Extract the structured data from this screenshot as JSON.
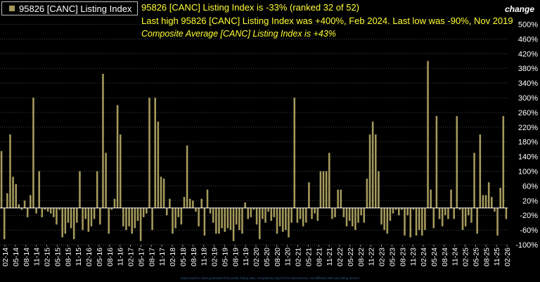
{
  "legend": {
    "label": "95826 [CANC] Listing Index",
    "color": "#a59a5c"
  },
  "headlines": {
    "line1": "95826 [CANC] Listing Index is -33% (ranked 32 of 52)",
    "line2": "Last high 95826 [CANC] Listing Index was +400%, Feb 2024. Last low was -90%, Nov 2019",
    "line3": "Composite Average [CANC] Listing Index is +43%"
  },
  "axis_title": "change",
  "colors": {
    "background": "#000000",
    "bar": "#a59a5c",
    "grid": "#444444",
    "zero_line": "#ffffff",
    "headline": "#ffff33"
  },
  "chart_data": {
    "type": "bar",
    "series": [
      {
        "name": "95826 [CANC] Listing Index"
      }
    ],
    "x_tick_labels": [
      "02-14",
      "05-14",
      "08-14",
      "11-14",
      "02-15",
      "05-15",
      "08-15",
      "11-15",
      "02-16",
      "05-16",
      "08-16",
      "11-16",
      "02-17",
      "05-17",
      "08-17",
      "11-17",
      "02-18",
      "05-18",
      "08-18",
      "11-18",
      "02-19",
      "05-19",
      "08-19",
      "11-19",
      "02-20",
      "05-20",
      "08-20",
      "11-20",
      "02-21",
      "05-21",
      "08-21",
      "11-21",
      "02-22",
      "05-22",
      "08-22",
      "11-22",
      "02-23",
      "05-23",
      "08-23",
      "11-23",
      "02-24",
      "05-24",
      "08-24",
      "11-24",
      "02-25",
      "05-25",
      "08-25",
      "11-25",
      "02-26"
    ],
    "y_ticks": [
      -100,
      -60,
      -20,
      20,
      60,
      100,
      140,
      180,
      220,
      260,
      300,
      340,
      380,
      420,
      460,
      500
    ],
    "y_tick_labels": [
      "-100%",
      "-60%",
      "-20%",
      "20%",
      "60%",
      "100%",
      "140%",
      "180%",
      "220%",
      "260%",
      "300%",
      "340%",
      "380%",
      "420%",
      "460%",
      "500%"
    ],
    "ylim": [
      -100,
      520
    ],
    "grid": true,
    "values": [
      155,
      -85,
      40,
      200,
      85,
      65,
      10,
      -5,
      20,
      -25,
      35,
      300,
      -15,
      100,
      -25,
      -5,
      -10,
      -15,
      -25,
      -45,
      -5,
      -80,
      -70,
      -40,
      -55,
      -85,
      -40,
      100,
      -60,
      -30,
      -65,
      -50,
      -30,
      100,
      -45,
      365,
      150,
      -70,
      -5,
      25,
      280,
      200,
      -50,
      -60,
      -50,
      -70,
      -55,
      -35,
      -90,
      -25,
      -15,
      300,
      -60,
      300,
      235,
      85,
      80,
      -20,
      25,
      -70,
      -55,
      -25,
      -45,
      30,
      170,
      25,
      20,
      -10,
      -50,
      25,
      -75,
      50,
      -15,
      -40,
      -70,
      -70,
      -55,
      -65,
      -55,
      -60,
      -90,
      -45,
      -60,
      -70,
      15,
      -30,
      -25,
      -5,
      -45,
      -85,
      -30,
      -40,
      -10,
      -35,
      -25,
      -70,
      -50,
      -65,
      -60,
      -80,
      -40,
      300,
      -40,
      -30,
      -50,
      -40,
      70,
      -30,
      -15,
      -35,
      100,
      100,
      100,
      150,
      -30,
      -25,
      50,
      50,
      -25,
      -50,
      -35,
      -50,
      -60,
      -40,
      -20,
      -40,
      80,
      200,
      235,
      200,
      100,
      -45,
      -60,
      -70,
      -35,
      -15,
      -5,
      -20,
      -5,
      -75,
      -20,
      -80,
      -5,
      -75,
      -60,
      -75,
      -60,
      400,
      50,
      -55,
      250,
      -30,
      -50,
      -20,
      -30,
      50,
      -30,
      250,
      -5,
      -60,
      -50,
      -20,
      -40,
      150,
      -70,
      200,
      35,
      35,
      70,
      30,
      -10,
      -75,
      55,
      250,
      -30
    ]
  },
  "footer_text": "Data used for chart generated from public listing data, compiled by DQYDJ for Sacramento; not affiliated with any listing service"
}
